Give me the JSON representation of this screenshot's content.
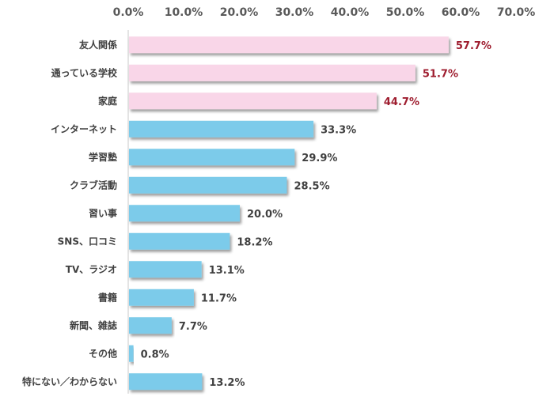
{
  "chart_data": {
    "type": "bar",
    "orientation": "horizontal",
    "xlim": [
      0,
      70
    ],
    "xticks": [
      "0.0%",
      "10.0%",
      "20.0%",
      "30.0%",
      "40.0%",
      "50.0%",
      "60.0%",
      "70.0%"
    ],
    "grid": false,
    "categories": [
      "友人関係",
      "通っている学校",
      "家庭",
      "インターネット",
      "学習塾",
      "クラブ活動",
      "習い事",
      "SNS、口コミ",
      "TV、ラジオ",
      "書籍",
      "新聞、雑誌",
      "その他",
      "特にない／わからない"
    ],
    "values": [
      57.7,
      51.7,
      44.7,
      33.3,
      29.9,
      28.5,
      20.0,
      18.2,
      13.1,
      11.7,
      7.7,
      0.8,
      13.2
    ],
    "value_labels": [
      "57.7%",
      "51.7%",
      "44.7%",
      "33.3%",
      "29.9%",
      "28.5%",
      "20.0%",
      "18.2%",
      "13.1%",
      "11.7%",
      "7.7%",
      "0.8%",
      "13.2%"
    ],
    "highlight_count": 3,
    "colors": {
      "highlight_bar": "#f9d6e8",
      "bar": "#7ccbea",
      "highlight_label": "#9e1c2e",
      "label": "#404040",
      "tick": "#595959",
      "axis": "#c8c8c8"
    }
  }
}
